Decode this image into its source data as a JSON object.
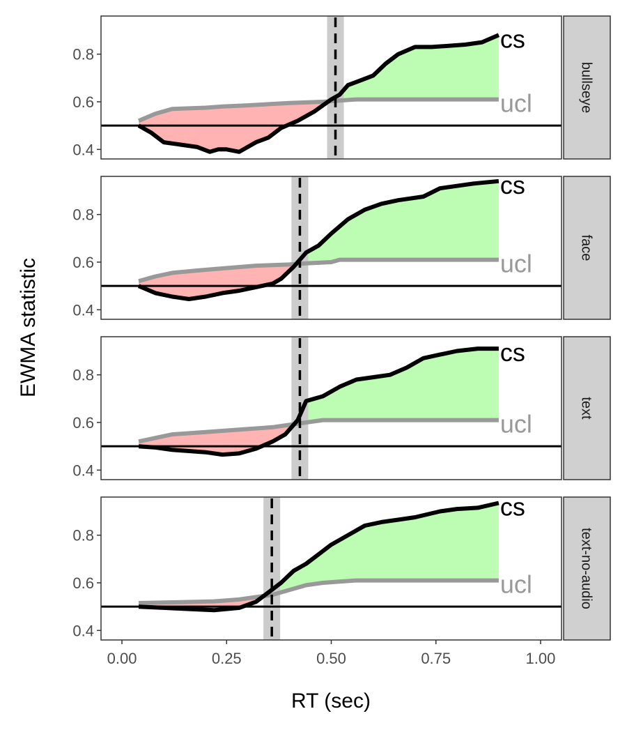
{
  "chart_data": {
    "type": "line",
    "xlabel": "RT (sec)",
    "ylabel": "EWMA statistic",
    "xlim": [
      -0.05,
      1.05
    ],
    "ylim": [
      0.36,
      0.96
    ],
    "x_ticks": [
      0.0,
      0.25,
      0.5,
      0.75,
      1.0
    ],
    "x_tick_labels": [
      "0.00",
      "0.25",
      "0.50",
      "0.75",
      "1.00"
    ],
    "y_ticks": [
      0.4,
      0.6,
      0.8
    ],
    "y_tick_labels": [
      "0.4",
      "0.6",
      "0.8"
    ],
    "baseline": 0.5,
    "colors": {
      "cs": "#000000",
      "ucl": "#999999",
      "below_fill": "#ffb3b3",
      "above_fill": "#bdfcb3",
      "band": "#cccccc",
      "strip": "#d0d0d0"
    },
    "panels": [
      {
        "name": "bullseye",
        "cutoff": 0.51,
        "band": [
          0.49,
          0.53
        ],
        "cs_label": "cs",
        "ucl_label": "ucl",
        "ucl": [
          [
            0.04,
            0.52
          ],
          [
            0.08,
            0.55
          ],
          [
            0.12,
            0.57
          ],
          [
            0.2,
            0.575
          ],
          [
            0.24,
            0.58
          ],
          [
            0.3,
            0.585
          ],
          [
            0.4,
            0.595
          ],
          [
            0.48,
            0.6
          ],
          [
            0.52,
            0.605
          ],
          [
            0.56,
            0.61
          ],
          [
            0.9,
            0.61
          ]
        ],
        "cs": [
          [
            0.04,
            0.5
          ],
          [
            0.07,
            0.47
          ],
          [
            0.1,
            0.43
          ],
          [
            0.14,
            0.42
          ],
          [
            0.18,
            0.41
          ],
          [
            0.21,
            0.39
          ],
          [
            0.23,
            0.4
          ],
          [
            0.25,
            0.4
          ],
          [
            0.28,
            0.39
          ],
          [
            0.32,
            0.43
          ],
          [
            0.35,
            0.45
          ],
          [
            0.38,
            0.49
          ],
          [
            0.42,
            0.52
          ],
          [
            0.46,
            0.56
          ],
          [
            0.5,
            0.61
          ],
          [
            0.52,
            0.63
          ],
          [
            0.54,
            0.67
          ],
          [
            0.57,
            0.69
          ],
          [
            0.6,
            0.71
          ],
          [
            0.63,
            0.76
          ],
          [
            0.66,
            0.8
          ],
          [
            0.7,
            0.83
          ],
          [
            0.74,
            0.83
          ],
          [
            0.78,
            0.835
          ],
          [
            0.82,
            0.84
          ],
          [
            0.86,
            0.85
          ],
          [
            0.9,
            0.88
          ]
        ]
      },
      {
        "name": "face",
        "cutoff": 0.425,
        "band": [
          0.405,
          0.445
        ],
        "cs_label": "cs",
        "ucl_label": "ucl",
        "ucl": [
          [
            0.04,
            0.52
          ],
          [
            0.08,
            0.54
          ],
          [
            0.12,
            0.555
          ],
          [
            0.18,
            0.565
          ],
          [
            0.25,
            0.575
          ],
          [
            0.32,
            0.585
          ],
          [
            0.4,
            0.59
          ],
          [
            0.44,
            0.595
          ],
          [
            0.5,
            0.6
          ],
          [
            0.52,
            0.61
          ],
          [
            0.9,
            0.61
          ]
        ],
        "cs": [
          [
            0.04,
            0.5
          ],
          [
            0.08,
            0.47
          ],
          [
            0.12,
            0.455
          ],
          [
            0.16,
            0.445
          ],
          [
            0.2,
            0.455
          ],
          [
            0.24,
            0.47
          ],
          [
            0.28,
            0.48
          ],
          [
            0.32,
            0.495
          ],
          [
            0.36,
            0.51
          ],
          [
            0.38,
            0.53
          ],
          [
            0.41,
            0.58
          ],
          [
            0.44,
            0.64
          ],
          [
            0.47,
            0.67
          ],
          [
            0.5,
            0.72
          ],
          [
            0.54,
            0.78
          ],
          [
            0.58,
            0.82
          ],
          [
            0.62,
            0.845
          ],
          [
            0.66,
            0.86
          ],
          [
            0.72,
            0.875
          ],
          [
            0.76,
            0.91
          ],
          [
            0.8,
            0.92
          ],
          [
            0.84,
            0.93
          ],
          [
            0.9,
            0.94
          ]
        ]
      },
      {
        "name": "text",
        "cutoff": 0.425,
        "band": [
          0.405,
          0.445
        ],
        "cs_label": "cs",
        "ucl_label": "ucl",
        "ucl": [
          [
            0.04,
            0.52
          ],
          [
            0.08,
            0.535
          ],
          [
            0.12,
            0.55
          ],
          [
            0.2,
            0.56
          ],
          [
            0.28,
            0.57
          ],
          [
            0.36,
            0.58
          ],
          [
            0.4,
            0.59
          ],
          [
            0.44,
            0.6
          ],
          [
            0.48,
            0.61
          ],
          [
            0.9,
            0.61
          ]
        ],
        "cs": [
          [
            0.04,
            0.5
          ],
          [
            0.08,
            0.495
          ],
          [
            0.12,
            0.485
          ],
          [
            0.16,
            0.48
          ],
          [
            0.2,
            0.475
          ],
          [
            0.24,
            0.465
          ],
          [
            0.28,
            0.47
          ],
          [
            0.32,
            0.49
          ],
          [
            0.36,
            0.52
          ],
          [
            0.39,
            0.55
          ],
          [
            0.42,
            0.61
          ],
          [
            0.44,
            0.69
          ],
          [
            0.48,
            0.71
          ],
          [
            0.52,
            0.75
          ],
          [
            0.56,
            0.78
          ],
          [
            0.6,
            0.79
          ],
          [
            0.64,
            0.8
          ],
          [
            0.68,
            0.83
          ],
          [
            0.72,
            0.87
          ],
          [
            0.76,
            0.885
          ],
          [
            0.8,
            0.9
          ],
          [
            0.85,
            0.91
          ],
          [
            0.9,
            0.91
          ]
        ]
      },
      {
        "name": "text-no-audio",
        "cutoff": 0.358,
        "band": [
          0.338,
          0.378
        ],
        "cs_label": "cs",
        "ucl_label": "ucl",
        "ucl": [
          [
            0.04,
            0.515
          ],
          [
            0.12,
            0.518
          ],
          [
            0.22,
            0.522
          ],
          [
            0.28,
            0.53
          ],
          [
            0.32,
            0.54
          ],
          [
            0.36,
            0.55
          ],
          [
            0.4,
            0.57
          ],
          [
            0.44,
            0.59
          ],
          [
            0.48,
            0.6
          ],
          [
            0.52,
            0.605
          ],
          [
            0.56,
            0.61
          ],
          [
            0.9,
            0.61
          ]
        ],
        "cs": [
          [
            0.04,
            0.5
          ],
          [
            0.1,
            0.495
          ],
          [
            0.16,
            0.49
          ],
          [
            0.22,
            0.485
          ],
          [
            0.28,
            0.495
          ],
          [
            0.32,
            0.52
          ],
          [
            0.35,
            0.56
          ],
          [
            0.38,
            0.6
          ],
          [
            0.41,
            0.65
          ],
          [
            0.44,
            0.68
          ],
          [
            0.47,
            0.72
          ],
          [
            0.5,
            0.76
          ],
          [
            0.54,
            0.8
          ],
          [
            0.58,
            0.84
          ],
          [
            0.62,
            0.855
          ],
          [
            0.66,
            0.865
          ],
          [
            0.7,
            0.875
          ],
          [
            0.76,
            0.9
          ],
          [
            0.8,
            0.91
          ],
          [
            0.85,
            0.915
          ],
          [
            0.9,
            0.935
          ]
        ]
      }
    ]
  }
}
